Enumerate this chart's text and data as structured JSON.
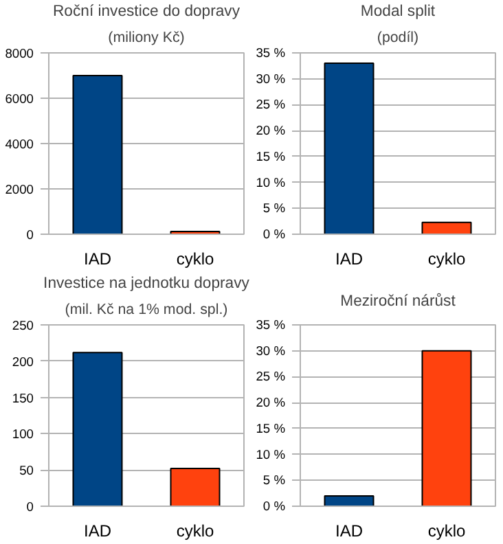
{
  "chart_data": [
    {
      "type": "bar",
      "title": "Roční investice do dopravy",
      "subtitle": "(miliony Kč)",
      "categories": [
        "IAD",
        "cyklo"
      ],
      "values": [
        7000,
        120
      ],
      "colors": [
        "#004586",
        "#ff420e"
      ],
      "ylim": [
        0,
        8000
      ],
      "yticks": [
        0,
        2000,
        4000,
        6000,
        8000
      ],
      "grid": "y"
    },
    {
      "type": "bar",
      "title": "Modal split",
      "subtitle": "(podíl)",
      "categories": [
        "IAD",
        "cyklo"
      ],
      "values": [
        33,
        2.3
      ],
      "colors": [
        "#004586",
        "#ff420e"
      ],
      "ylim": [
        0,
        35
      ],
      "yticks": [
        {
          "value": 0,
          "label": "0 %"
        },
        {
          "value": 5,
          "label": "5 %"
        },
        {
          "value": 10,
          "label": "10 %"
        },
        {
          "value": 15,
          "label": "15 %"
        },
        {
          "value": 20,
          "label": "20 %"
        },
        {
          "value": 25,
          "label": "25 %"
        },
        {
          "value": 30,
          "label": "30 %"
        },
        {
          "value": 35,
          "label": "35 %"
        }
      ],
      "grid": "y"
    },
    {
      "type": "bar",
      "title": "Investice na jednotku dopravy",
      "subtitle": "(mil. Kč na 1% mod. spl.)",
      "categories": [
        "IAD",
        "cyklo"
      ],
      "values": [
        212,
        52
      ],
      "colors": [
        "#004586",
        "#ff420e"
      ],
      "ylim": [
        0,
        250
      ],
      "yticks": [
        0,
        50,
        100,
        150,
        200,
        250
      ],
      "grid": "y"
    },
    {
      "type": "bar",
      "title": "Meziroční nárůst",
      "categories": [
        "IAD",
        "cyklo"
      ],
      "values": [
        2,
        30
      ],
      "colors": [
        "#004586",
        "#ff420e"
      ],
      "ylim": [
        0,
        35
      ],
      "yticks": [
        {
          "value": 0,
          "label": "0 %"
        },
        {
          "value": 5,
          "label": "5 %"
        },
        {
          "value": 10,
          "label": "10 %"
        },
        {
          "value": 15,
          "label": "15 %"
        },
        {
          "value": 20,
          "label": "20 %"
        },
        {
          "value": 25,
          "label": "25 %"
        },
        {
          "value": 30,
          "label": "30 %"
        },
        {
          "value": 35,
          "label": "35 %"
        }
      ],
      "grid": "y"
    }
  ]
}
